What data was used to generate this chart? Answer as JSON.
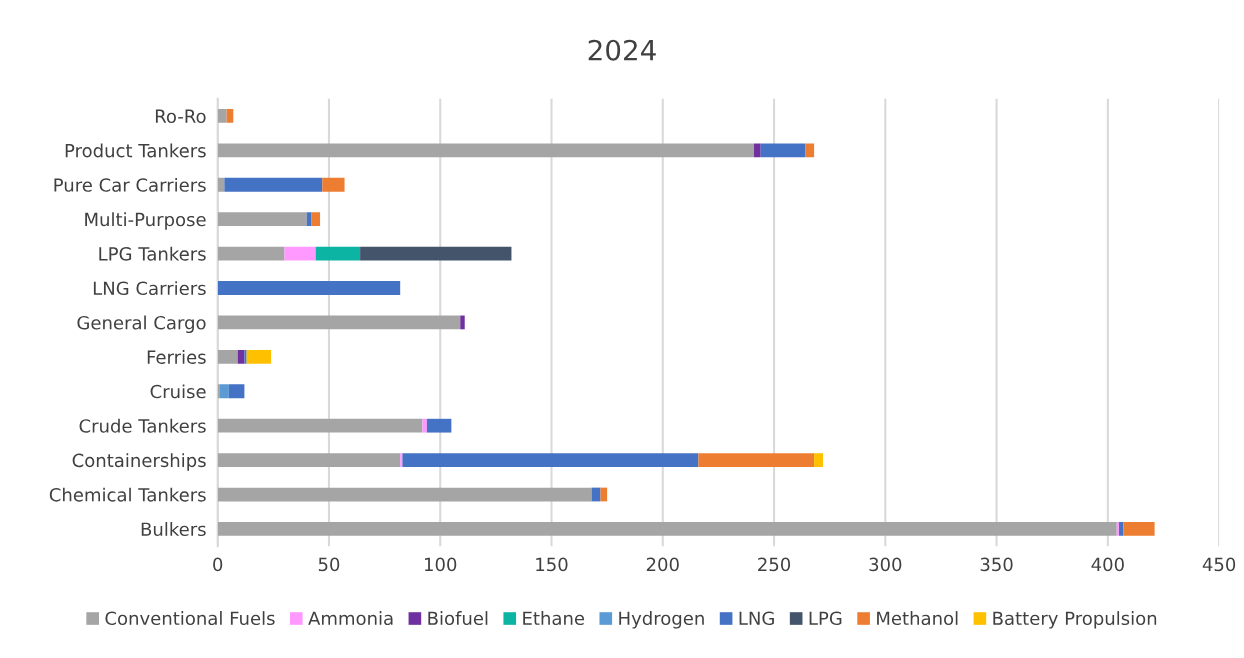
{
  "chart_data": {
    "type": "bar",
    "orientation": "horizontal",
    "stacked": true,
    "title": "2024",
    "categories": [
      "Ro-Ro",
      "Product Tankers",
      "Pure Car Carriers",
      "Multi-Purpose",
      "LPG Tankers",
      "LNG Carriers",
      "General Cargo",
      "Ferries",
      "Cruise",
      "Crude Tankers",
      "Containerships",
      "Chemical Tankers",
      "Bulkers"
    ],
    "series": [
      {
        "name": "Conventional Fuels",
        "color": "#a5a5a5",
        "values": [
          4,
          241,
          3,
          40,
          30,
          0,
          109,
          9,
          1,
          92,
          82,
          168,
          404
        ]
      },
      {
        "name": "Ammonia",
        "color": "#ff99ff",
        "values": [
          0,
          0,
          0,
          0,
          14,
          0,
          0,
          0,
          0,
          2,
          1,
          0,
          1
        ]
      },
      {
        "name": "Biofuel",
        "color": "#7030a0",
        "values": [
          0,
          3,
          0,
          0,
          0,
          0,
          2,
          3,
          0,
          0,
          0,
          0,
          0
        ]
      },
      {
        "name": "Ethane",
        "color": "#0cb4a4",
        "values": [
          0,
          0,
          0,
          0,
          20,
          0,
          0,
          0,
          0,
          0,
          0,
          0,
          0
        ]
      },
      {
        "name": "Hydrogen",
        "color": "#5b9bd5",
        "values": [
          0,
          0,
          0,
          0,
          0,
          0,
          0,
          0,
          4,
          0,
          0,
          0,
          0
        ]
      },
      {
        "name": "LNG",
        "color": "#4472c4",
        "values": [
          0,
          20,
          44,
          2,
          0,
          82,
          0,
          1,
          7,
          11,
          133,
          4,
          2
        ]
      },
      {
        "name": "LPG",
        "color": "#44546a",
        "values": [
          0,
          0,
          0,
          0,
          68,
          0,
          0,
          0,
          0,
          0,
          0,
          0,
          0
        ]
      },
      {
        "name": "Methanol",
        "color": "#ed7d31",
        "values": [
          3,
          4,
          10,
          4,
          0,
          0,
          0,
          0,
          0,
          0,
          52,
          3,
          14
        ]
      },
      {
        "name": "Battery Propulsion",
        "color": "#ffc000",
        "values": [
          0,
          0,
          0,
          0,
          0,
          0,
          0,
          11,
          0,
          0,
          4,
          0,
          0
        ]
      }
    ],
    "xlim": [
      0,
      450
    ],
    "xticks": [
      0,
      50,
      100,
      150,
      200,
      250,
      300,
      350,
      400,
      450
    ],
    "grid": "x",
    "legend": "bottom"
  }
}
